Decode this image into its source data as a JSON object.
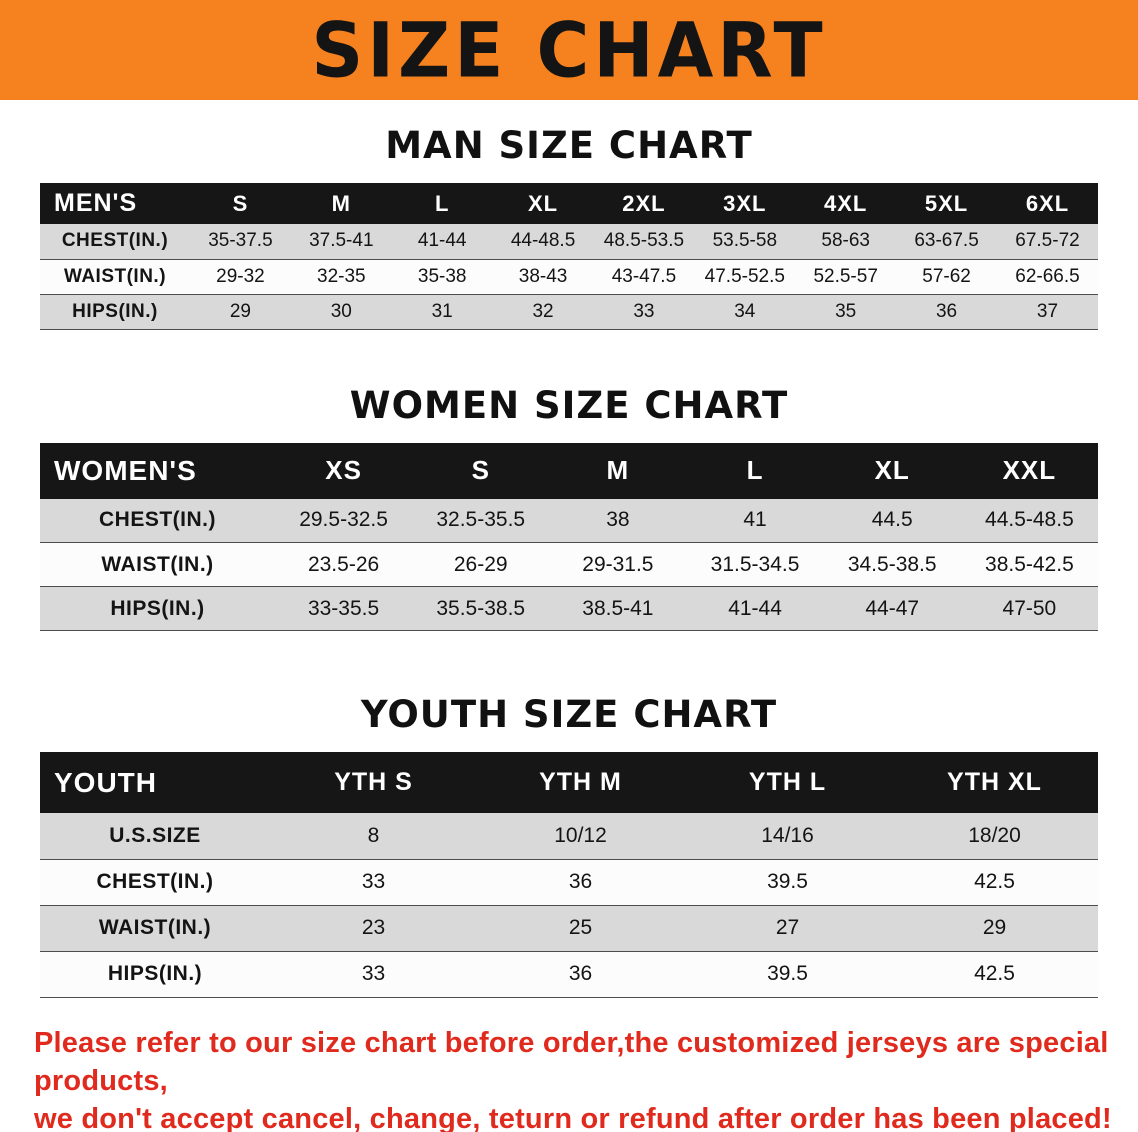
{
  "banner": {
    "title": "SIZE CHART",
    "bg_color": "#F5821F"
  },
  "sections": [
    {
      "id": "men",
      "heading": "MAN SIZE CHART",
      "table": {
        "header": [
          "MEN'S",
          "S",
          "M",
          "L",
          "XL",
          "2XL",
          "3XL",
          "4XL",
          "5XL",
          "6XL"
        ],
        "rows": [
          [
            "CHEST(IN.)",
            "35-37.5",
            "37.5-41",
            "41-44",
            "44-48.5",
            "48.5-53.5",
            "53.5-58",
            "58-63",
            "63-67.5",
            "67.5-72"
          ],
          [
            "WAIST(IN.)",
            "29-32",
            "32-35",
            "35-38",
            "38-43",
            "43-47.5",
            "47.5-52.5",
            "52.5-57",
            "57-62",
            "62-66.5"
          ],
          [
            "HIPS(IN.)",
            "29",
            "30",
            "31",
            "32",
            "33",
            "34",
            "35",
            "36",
            "37"
          ]
        ]
      }
    },
    {
      "id": "women",
      "heading": "WOMEN SIZE CHART",
      "table": {
        "header": [
          "WOMEN'S",
          "XS",
          "S",
          "M",
          "L",
          "XL",
          "XXL"
        ],
        "rows": [
          [
            "CHEST(IN.)",
            "29.5-32.5",
            "32.5-35.5",
            "38",
            "41",
            "44.5",
            "44.5-48.5"
          ],
          [
            "WAIST(IN.)",
            "23.5-26",
            "26-29",
            "29-31.5",
            "31.5-34.5",
            "34.5-38.5",
            "38.5-42.5"
          ],
          [
            "HIPS(IN.)",
            "33-35.5",
            "35.5-38.5",
            "38.5-41",
            "41-44",
            "44-47",
            "47-50"
          ]
        ]
      }
    },
    {
      "id": "youth",
      "heading": "YOUTH SIZE CHART",
      "table": {
        "header": [
          "YOUTH",
          "YTH S",
          "YTH M",
          "YTH L",
          "YTH XL"
        ],
        "rows": [
          [
            "U.S.SIZE",
            "8",
            "10/12",
            "14/16",
            "18/20"
          ],
          [
            "CHEST(IN.)",
            "33",
            "36",
            "39.5",
            "42.5"
          ],
          [
            "WAIST(IN.)",
            "23",
            "25",
            "27",
            "29"
          ],
          [
            "HIPS(IN.)",
            "33",
            "36",
            "39.5",
            "42.5"
          ]
        ]
      }
    }
  ],
  "disclaimer": {
    "line1": "Please refer to our size chart before order,the customized jerseys are special products,",
    "line2": "we don't accept cancel, change, teturn or refund after order has been placed!",
    "color": "#E02A1E"
  }
}
